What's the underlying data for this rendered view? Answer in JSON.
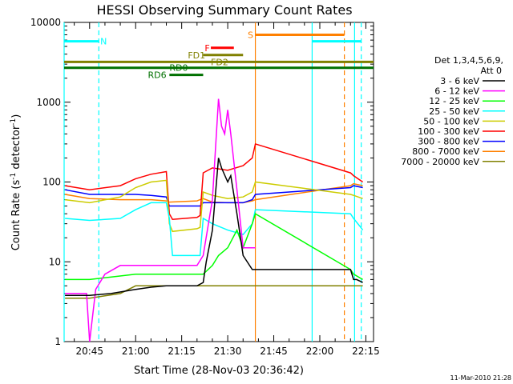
{
  "chart_data": {
    "type": "line",
    "title": "HESSI Observing Summary Count Rates",
    "xlabel": "Start Time (28-Nov-03 20:36:42)",
    "ylabel_main": "Count Rate (s",
    "ylabel_sup1": "-1",
    "ylabel_mid": " detector",
    "ylabel_sup2": "-1",
    "ylabel_end": ")",
    "y_scale": "log",
    "ylim": [
      1,
      10000
    ],
    "xlim": [
      "20:36:42",
      "22:17:30"
    ],
    "x_ticks": [
      "20:45",
      "21:00",
      "21:15",
      "21:30",
      "21:45",
      "22:00",
      "22:15"
    ],
    "y_ticks": [
      "1",
      "10",
      "100",
      "1000",
      "10000"
    ],
    "grid": false,
    "legend_position": "right",
    "legend_title_1": "Det 1,3,4,5,6,9,",
    "legend_title_2": "Att 0",
    "date_stamp": "11-Mar-2010 21:28",
    "series": [
      {
        "name": "3 - 6 keV",
        "color": "#000000",
        "x": [
          "20:37",
          "20:45",
          "20:52",
          "21:00",
          "21:05",
          "21:10",
          "21:11",
          "21:20",
          "21:22",
          "21:23",
          "21:25",
          "21:27",
          "21:28",
          "21:30",
          "21:31",
          "21:33",
          "21:35",
          "21:38",
          "21:39",
          "22:10",
          "22:11",
          "22:12",
          "22:14"
        ],
        "y": [
          3.8,
          3.8,
          4.0,
          4.5,
          4.8,
          5.0,
          5.0,
          5.0,
          5.5,
          10,
          25,
          200,
          150,
          100,
          120,
          40,
          12,
          8,
          8,
          8,
          6,
          6,
          5.5
        ]
      },
      {
        "name": "6 - 12 keV",
        "color": "#ff00ff",
        "x": [
          "20:37",
          "20:44",
          "20:45",
          "20:47",
          "20:50",
          "20:55",
          "21:00",
          "21:10",
          "21:11",
          "21:20",
          "21:22",
          "21:25",
          "21:27",
          "21:28",
          "21:29",
          "21:30",
          "21:31",
          "21:33",
          "21:35",
          "21:38",
          "21:39"
        ],
        "y": [
          4.0,
          4.0,
          1.0,
          4.5,
          7,
          9,
          9,
          9,
          9,
          9,
          12,
          60,
          1100,
          500,
          400,
          800,
          400,
          80,
          15,
          15,
          15
        ]
      },
      {
        "name": "12 - 25 keV",
        "color": "#00ff00",
        "x": [
          "20:37",
          "20:45",
          "21:00",
          "21:10",
          "21:15",
          "21:22",
          "21:25",
          "21:27",
          "21:30",
          "21:33",
          "21:35",
          "21:38",
          "21:39",
          "22:10",
          "22:11",
          "22:14"
        ],
        "y": [
          6,
          6,
          7,
          7,
          7,
          7,
          9,
          12,
          15,
          25,
          15,
          30,
          40,
          8,
          7,
          6
        ]
      },
      {
        "name": "25 - 50 keV",
        "color": "#00ffff",
        "x": [
          "20:37",
          "20:45",
          "20:55",
          "21:00",
          "21:05",
          "21:10",
          "21:11",
          "21:12",
          "21:20",
          "21:21",
          "21:22",
          "21:25",
          "21:30",
          "21:35",
          "21:38",
          "21:39",
          "22:10",
          "22:11",
          "22:13",
          "22:14"
        ],
        "y": [
          35,
          33,
          35,
          45,
          55,
          55,
          35,
          12,
          12,
          12,
          35,
          30,
          25,
          22,
          30,
          45,
          40,
          35,
          28,
          25
        ]
      },
      {
        "name": "50 - 100 keV",
        "color": "#cccc00",
        "x": [
          "20:37",
          "20:45",
          "20:55",
          "21:00",
          "21:05",
          "21:10",
          "21:11",
          "21:12",
          "21:20",
          "21:21",
          "21:22",
          "21:25",
          "21:30",
          "21:35",
          "21:38",
          "21:39",
          "22:10",
          "22:11",
          "22:14"
        ],
        "y": [
          60,
          55,
          65,
          85,
          100,
          105,
          30,
          24,
          26,
          27,
          75,
          68,
          62,
          65,
          75,
          100,
          70,
          68,
          62
        ]
      },
      {
        "name": "100 - 300 keV",
        "color": "#ff0000",
        "x": [
          "20:37",
          "20:45",
          "20:55",
          "21:00",
          "21:05",
          "21:10",
          "21:11",
          "21:12",
          "21:20",
          "21:21",
          "21:22",
          "21:25",
          "21:30",
          "21:35",
          "21:38",
          "21:39",
          "22:10",
          "22:11",
          "22:14"
        ],
        "y": [
          90,
          80,
          90,
          110,
          125,
          135,
          40,
          34,
          36,
          38,
          130,
          150,
          140,
          160,
          200,
          300,
          130,
          120,
          100
        ]
      },
      {
        "name": "300 - 800 keV",
        "color": "#0000ff",
        "x": [
          "20:37",
          "20:45",
          "20:55",
          "21:00",
          "21:05",
          "21:10",
          "21:11",
          "21:20",
          "21:21",
          "21:22",
          "21:25",
          "21:30",
          "21:35",
          "21:38",
          "21:39",
          "22:10",
          "22:11",
          "22:14"
        ],
        "y": [
          80,
          70,
          70,
          70,
          68,
          65,
          50,
          50,
          50,
          55,
          55,
          55,
          55,
          60,
          70,
          85,
          90,
          85
        ]
      },
      {
        "name": "800 - 7000 keV",
        "color": "#ff8000",
        "x": [
          "20:37",
          "20:45",
          "20:55",
          "21:00",
          "21:05",
          "21:10",
          "21:11",
          "21:20",
          "21:21",
          "21:22",
          "21:25",
          "21:30",
          "21:35",
          "21:38",
          "21:39",
          "22:10",
          "22:11",
          "22:14"
        ],
        "y": [
          70,
          62,
          60,
          60,
          60,
          58,
          56,
          58,
          60,
          62,
          56,
          55,
          55,
          58,
          60,
          90,
          95,
          90
        ]
      },
      {
        "name": "7000 - 20000 keV",
        "color": "#808000",
        "x": [
          "20:37",
          "20:45",
          "20:55",
          "21:00",
          "21:10",
          "21:15",
          "21:22",
          "21:25",
          "21:30",
          "21:35",
          "21:38",
          "21:39",
          "22:10",
          "22:11",
          "22:14"
        ],
        "y": [
          3.5,
          3.5,
          4,
          5,
          5,
          5,
          5,
          5,
          5,
          5,
          5,
          5,
          5,
          5,
          5
        ]
      }
    ],
    "vertical_markers": [
      {
        "time": "20:36:42",
        "color": "#00ffff",
        "style": "solid"
      },
      {
        "time": "20:48:00",
        "color": "#00ffff",
        "style": "dashed"
      },
      {
        "time": "21:39:00",
        "color": "#ff8000",
        "style": "solid"
      },
      {
        "time": "21:57:30",
        "color": "#00ffff",
        "style": "solid"
      },
      {
        "time": "22:08:00",
        "color": "#ff8000",
        "style": "dashed"
      },
      {
        "time": "22:11:20",
        "color": "#00ffff",
        "style": "solid"
      },
      {
        "time": "22:13:30",
        "color": "#00ffff",
        "style": "dashed"
      }
    ],
    "state_bars": [
      {
        "label": "N",
        "color": "#00ffff",
        "y": 5800,
        "segments": [
          [
            "20:36:42",
            "20:48:00"
          ],
          [
            "21:57:30",
            "22:13:30"
          ]
        ],
        "label_time": "20:48:30"
      },
      {
        "label": "S",
        "color": "#ff8000",
        "y": 7000,
        "segments": [
          [
            "21:39:00",
            "22:08:00"
          ]
        ],
        "label_time": "21:36:30"
      },
      {
        "label": "F",
        "color": "#ff0000",
        "y": 4800,
        "segments": [
          [
            "21:24:30",
            "21:32:00"
          ]
        ],
        "label_time": "21:22:30"
      },
      {
        "label": "FD1",
        "color": "#808000",
        "y": 3900,
        "segments": [
          [
            "21:22:00",
            "21:35:00"
          ]
        ],
        "label_time": "21:17:00"
      },
      {
        "label": "FD2",
        "color": "#808000",
        "y": 3200,
        "segments": [
          [
            "20:36:42",
            "22:17:30"
          ]
        ],
        "label_time": "21:24:30"
      },
      {
        "label": "RD0",
        "color": "#007000",
        "y": 2700,
        "segments": [
          [
            "20:36:42",
            "22:17:30"
          ]
        ],
        "label_time": "21:11:00"
      },
      {
        "label": "RD6",
        "color": "#007000",
        "y": 2200,
        "segments": [
          [
            "21:11:00",
            "21:22:00"
          ]
        ],
        "label_time": "21:04:00"
      }
    ]
  }
}
